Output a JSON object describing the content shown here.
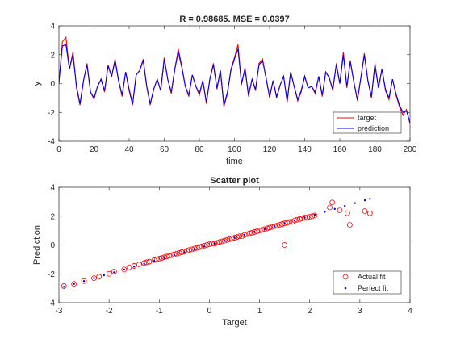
{
  "chart_data": [
    {
      "type": "line",
      "title": "R = 0.98685. MSE = 0.0397",
      "xlabel": "time",
      "ylabel": "y",
      "xlim": [
        0,
        200
      ],
      "ylim": [
        -4,
        4
      ],
      "xticks": [
        0,
        20,
        40,
        60,
        80,
        100,
        120,
        140,
        160,
        180,
        200
      ],
      "yticks": [
        -4,
        -2,
        0,
        2,
        4
      ],
      "grid": false,
      "legend_position": "bottom-right",
      "series": [
        {
          "name": "target",
          "color": "#ff0000",
          "x": [
            0,
            2,
            4,
            6,
            8,
            10,
            12,
            14,
            16,
            18,
            20,
            22,
            24,
            26,
            28,
            30,
            32,
            34,
            36,
            38,
            40,
            42,
            44,
            46,
            48,
            50,
            52,
            54,
            56,
            58,
            60,
            62,
            64,
            66,
            68,
            70,
            72,
            74,
            76,
            78,
            80,
            82,
            84,
            86,
            88,
            90,
            92,
            94,
            96,
            98,
            100,
            102,
            104,
            106,
            108,
            110,
            112,
            114,
            116,
            118,
            120,
            122,
            124,
            126,
            128,
            130,
            132,
            134,
            136,
            138,
            140,
            142,
            144,
            146,
            148,
            150,
            152,
            154,
            156,
            158,
            160,
            162,
            164,
            166,
            168,
            170,
            172,
            174,
            176,
            178,
            180,
            182,
            184,
            186,
            188,
            190,
            192,
            194,
            196,
            198,
            200
          ],
          "values": [
            0.0,
            2.9,
            3.2,
            1.0,
            2.2,
            -0.3,
            -1.5,
            0.2,
            1.4,
            -0.6,
            -1.1,
            -0.2,
            0.3,
            -0.6,
            1.3,
            0.5,
            1.7,
            0.2,
            -0.9,
            0.8,
            -0.5,
            -1.5,
            0.6,
            0.9,
            1.7,
            -0.2,
            -1.5,
            -0.4,
            0.3,
            -0.5,
            1.8,
            0.3,
            -0.7,
            1.0,
            2.4,
            1.2,
            -0.2,
            -0.9,
            0.6,
            -0.2,
            -0.8,
            0.2,
            -1.4,
            0.3,
            1.4,
            -0.4,
            0.9,
            -1.6,
            -0.7,
            1.0,
            1.8,
            2.7,
            -0.1,
            1.1,
            -0.9,
            0.3,
            -0.5,
            1.4,
            1.7,
            0.4,
            -1.0,
            0.2,
            -1.0,
            -0.1,
            0.5,
            -1.3,
            0.8,
            -0.2,
            -1.2,
            -0.6,
            0.5,
            -0.3,
            -0.2,
            -0.7,
            0.5,
            -0.9,
            0.8,
            0.4,
            -0.5,
            1.4,
            0.0,
            2.2,
            -0.3,
            1.6,
            0.1,
            -1.2,
            0.4,
            2.1,
            0.2,
            -1.0,
            1.4,
            -0.3,
            1.0,
            -0.5,
            -1.1,
            0.3,
            -0.8,
            -1.6,
            -2.2,
            -1.8,
            -2.8
          ]
        },
        {
          "name": "prediction",
          "color": "#0000ff",
          "x": [
            0,
            2,
            4,
            6,
            8,
            10,
            12,
            14,
            16,
            18,
            20,
            22,
            24,
            26,
            28,
            30,
            32,
            34,
            36,
            38,
            40,
            42,
            44,
            46,
            48,
            50,
            52,
            54,
            56,
            58,
            60,
            62,
            64,
            66,
            68,
            70,
            72,
            74,
            76,
            78,
            80,
            82,
            84,
            86,
            88,
            90,
            92,
            94,
            96,
            98,
            100,
            102,
            104,
            106,
            108,
            110,
            112,
            114,
            116,
            118,
            120,
            122,
            124,
            126,
            128,
            130,
            132,
            134,
            136,
            138,
            140,
            142,
            144,
            146,
            148,
            150,
            152,
            154,
            156,
            158,
            160,
            162,
            164,
            166,
            168,
            170,
            172,
            174,
            176,
            178,
            180,
            182,
            184,
            186,
            188,
            190,
            192,
            194,
            196,
            198,
            200
          ],
          "values": [
            0.1,
            2.6,
            2.7,
            1.0,
            2.0,
            -0.2,
            -1.4,
            0.2,
            1.3,
            -0.6,
            -1.0,
            -0.2,
            0.3,
            -0.5,
            1.2,
            0.5,
            1.6,
            0.2,
            -0.8,
            0.8,
            -0.4,
            -1.4,
            0.6,
            0.9,
            1.6,
            -0.2,
            -1.4,
            -0.4,
            0.3,
            -0.5,
            1.7,
            0.3,
            -0.6,
            1.0,
            2.2,
            1.1,
            -0.2,
            -0.8,
            0.6,
            -0.2,
            -0.7,
            0.2,
            -1.3,
            0.3,
            1.3,
            -0.3,
            0.9,
            -1.5,
            -0.6,
            0.9,
            1.7,
            2.4,
            0.0,
            1.0,
            -0.8,
            0.3,
            -0.4,
            1.3,
            1.6,
            0.4,
            -0.9,
            0.2,
            -0.9,
            -0.1,
            0.5,
            -1.2,
            0.8,
            -0.2,
            -1.1,
            -0.5,
            0.5,
            -0.3,
            -0.2,
            -0.6,
            0.5,
            -0.8,
            0.8,
            0.4,
            -0.4,
            1.3,
            0.0,
            2.0,
            -0.2,
            1.5,
            0.1,
            -1.1,
            0.4,
            2.0,
            0.2,
            -0.9,
            1.3,
            -0.3,
            1.0,
            -0.4,
            -1.0,
            0.3,
            -0.7,
            -1.5,
            -2.0,
            -1.9,
            -2.7
          ]
        }
      ]
    },
    {
      "type": "scatter",
      "title": "Scatter plot",
      "xlabel": "Target",
      "ylabel": "Prediction",
      "xlim": [
        -3,
        4
      ],
      "ylim": [
        -4,
        4
      ],
      "xticks": [
        -3,
        -2,
        -1,
        0,
        1,
        2,
        3,
        4
      ],
      "yticks": [
        -4,
        -2,
        0,
        2,
        4
      ],
      "grid": false,
      "legend_position": "bottom-right",
      "series": [
        {
          "name": "Actual fit",
          "marker": "circle",
          "color": "#ff0000",
          "x": [
            -2.9,
            -2.7,
            -2.5,
            -2.3,
            -2.2,
            -2.0,
            -1.9,
            -1.7,
            -1.6,
            -1.5,
            -1.4,
            -1.3,
            -1.25,
            -1.2,
            -1.1,
            -1.05,
            -1.0,
            -0.95,
            -0.9,
            -0.85,
            -0.8,
            -0.75,
            -0.7,
            -0.65,
            -0.6,
            -0.55,
            -0.5,
            -0.45,
            -0.4,
            -0.35,
            -0.3,
            -0.25,
            -0.2,
            -0.15,
            -0.1,
            -0.05,
            0.0,
            0.05,
            0.1,
            0.15,
            0.2,
            0.25,
            0.3,
            0.35,
            0.4,
            0.45,
            0.5,
            0.55,
            0.6,
            0.65,
            0.7,
            0.75,
            0.8,
            0.85,
            0.9,
            0.95,
            1.0,
            1.05,
            1.1,
            1.15,
            1.2,
            1.25,
            1.3,
            1.35,
            1.4,
            1.45,
            1.5,
            1.55,
            1.6,
            1.65,
            1.7,
            1.75,
            1.8,
            1.85,
            1.9,
            1.95,
            2.0,
            2.05,
            2.1,
            1.5,
            2.4,
            2.45,
            2.6,
            2.75,
            2.8,
            3.1,
            3.2
          ],
          "y": [
            -2.85,
            -2.7,
            -2.5,
            -2.3,
            -2.2,
            -2.0,
            -1.85,
            -1.7,
            -1.55,
            -1.45,
            -1.35,
            -1.25,
            -1.2,
            -1.15,
            -1.05,
            -1.0,
            -0.95,
            -0.9,
            -0.85,
            -0.8,
            -0.75,
            -0.7,
            -0.65,
            -0.6,
            -0.55,
            -0.5,
            -0.45,
            -0.4,
            -0.35,
            -0.3,
            -0.25,
            -0.2,
            -0.15,
            -0.1,
            -0.05,
            0.0,
            0.05,
            0.1,
            0.1,
            0.15,
            0.2,
            0.25,
            0.3,
            0.35,
            0.4,
            0.45,
            0.5,
            0.55,
            0.6,
            0.6,
            0.7,
            0.75,
            0.8,
            0.85,
            0.9,
            0.95,
            1.0,
            1.05,
            1.1,
            1.15,
            1.2,
            1.25,
            1.3,
            1.35,
            1.4,
            1.45,
            1.5,
            1.55,
            1.6,
            1.6,
            1.7,
            1.75,
            1.8,
            1.85,
            1.9,
            1.9,
            1.95,
            2.0,
            2.05,
            0.0,
            2.6,
            2.95,
            2.4,
            2.2,
            1.4,
            2.35,
            2.2
          ]
        },
        {
          "name": "Perfect fit",
          "marker": "dot",
          "color": "#0000ff",
          "x": [
            -2.9,
            -2.7,
            -2.5,
            -2.3,
            -2.1,
            -1.9,
            -1.7,
            -1.5,
            -1.3,
            -1.1,
            -0.9,
            -0.7,
            -0.5,
            -0.3,
            -0.1,
            0.1,
            0.3,
            0.5,
            0.7,
            0.9,
            1.1,
            1.3,
            1.5,
            1.7,
            1.9,
            2.1,
            2.3,
            2.5,
            2.7,
            2.9,
            3.1,
            3.2
          ],
          "y": [
            -2.9,
            -2.7,
            -2.5,
            -2.3,
            -2.1,
            -1.9,
            -1.7,
            -1.5,
            -1.3,
            -1.1,
            -0.9,
            -0.7,
            -0.5,
            -0.3,
            -0.1,
            0.1,
            0.3,
            0.5,
            0.7,
            0.9,
            1.1,
            1.3,
            1.5,
            1.7,
            1.9,
            2.1,
            2.3,
            2.5,
            2.7,
            2.9,
            3.1,
            3.2
          ]
        }
      ]
    }
  ]
}
